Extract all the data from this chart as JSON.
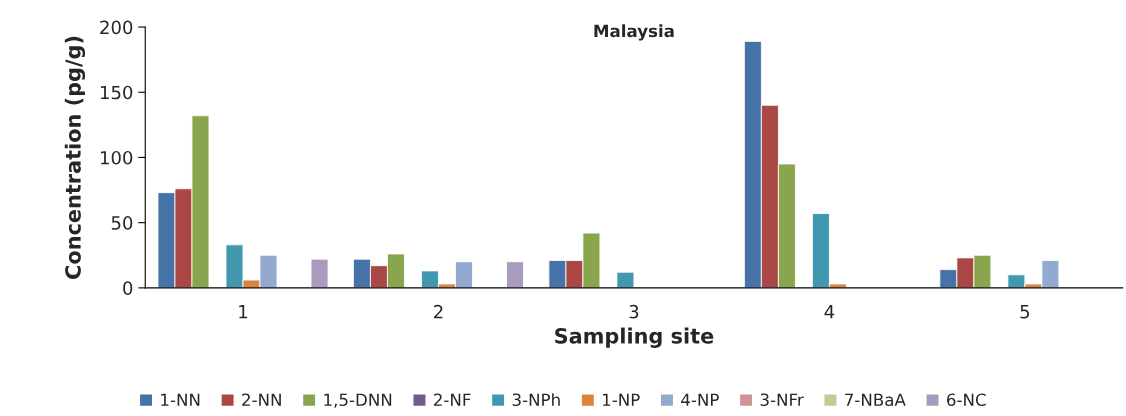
{
  "chart_data": {
    "type": "bar",
    "title": "Malaysia",
    "xlabel": "Sampling site",
    "ylabel": "Concentration (pg/g)",
    "categories": [
      "1",
      "2",
      "3",
      "4",
      "5"
    ],
    "series": [
      {
        "name": "1-NN",
        "color": "#4572a7",
        "values": [
          73,
          22,
          21,
          189,
          14
        ]
      },
      {
        "name": "2-NN",
        "color": "#aa4643",
        "values": [
          76,
          17,
          21,
          140,
          23
        ]
      },
      {
        "name": "1,5-DNN",
        "color": "#89a54e",
        "values": [
          132,
          26,
          42,
          95,
          25
        ]
      },
      {
        "name": "2-NF",
        "color": "#71588f",
        "values": [
          null,
          null,
          null,
          null,
          null
        ]
      },
      {
        "name": "3-NPh",
        "color": "#4198af",
        "values": [
          33,
          13,
          12,
          57,
          10
        ]
      },
      {
        "name": "1-NP",
        "color": "#db843d",
        "values": [
          6,
          3,
          0.3,
          3,
          3
        ]
      },
      {
        "name": "4-NP",
        "color": "#93a9cf",
        "values": [
          25,
          20,
          null,
          null,
          21
        ]
      },
      {
        "name": "3-NFr",
        "color": "#d19392",
        "values": [
          null,
          null,
          null,
          null,
          null
        ]
      },
      {
        "name": "7-NBaA",
        "color": "#b9cd96",
        "values": [
          null,
          null,
          null,
          null,
          null
        ]
      },
      {
        "name": "6-NC",
        "color": "#a99bbd",
        "values": [
          22,
          20,
          null,
          null,
          null
        ]
      }
    ],
    "ylim": [
      0,
      200
    ],
    "yticks": [
      0,
      50,
      100,
      150,
      200
    ],
    "grid": false,
    "legend": "bottom"
  }
}
